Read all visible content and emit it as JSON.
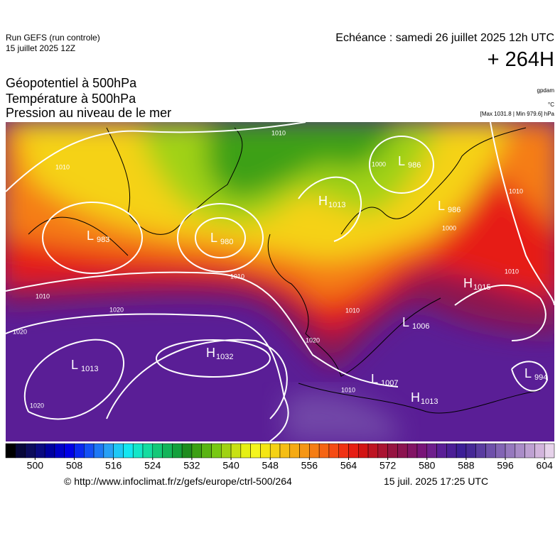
{
  "header": {
    "run": "Run GEFS (run controle)",
    "run_date": "15 juillet 2025 12Z",
    "valid": "Echéance : samedi 26 juillet 2025 12h UTC",
    "lead": "+ 264H",
    "fields": [
      "Géopotentiel à 500hPa",
      "Température à 500hPa",
      "Pression au niveau de le mer"
    ],
    "units": [
      "gpdam",
      "°C"
    ],
    "range_note": "[Max 1031.8 | Min 979.6] hPa"
  },
  "centers": [
    {
      "letter": "L",
      "value": 983
    },
    {
      "letter": "L",
      "value": 980
    },
    {
      "letter": "H",
      "value": 1013
    },
    {
      "letter": "L",
      "value": 986
    },
    {
      "letter": "L",
      "value": 986
    },
    {
      "letter": "H",
      "value": 1015
    },
    {
      "letter": "L",
      "value": 1006
    },
    {
      "letter": "H",
      "value": 1032
    },
    {
      "letter": "L",
      "value": 1013
    },
    {
      "letter": "L",
      "value": 1007
    },
    {
      "letter": "H",
      "value": 1013
    },
    {
      "letter": "L",
      "value": 994
    }
  ],
  "isobar_labels": [
    1010,
    1010,
    1000,
    1010,
    1010,
    1010,
    1020,
    1020,
    1020,
    1010,
    1020,
    1010,
    1010,
    1000
  ],
  "colorbar": {
    "range": [
      494,
      606
    ],
    "ticks": [
      500,
      508,
      516,
      524,
      532,
      540,
      548,
      556,
      564,
      572,
      580,
      588,
      596,
      604
    ],
    "colors": [
      "#000000",
      "#08083a",
      "#0c0c5c",
      "#0a0a80",
      "#0000a0",
      "#0000c8",
      "#0000e6",
      "#0a28f0",
      "#1450f5",
      "#1e78f5",
      "#28a0f5",
      "#1ec8f5",
      "#14e6f0",
      "#14e6c8",
      "#14dca0",
      "#14c878",
      "#14b45a",
      "#14a03c",
      "#1e8c1e",
      "#3ca014",
      "#5ab414",
      "#78c814",
      "#a0d214",
      "#c8e114",
      "#e6f014",
      "#f5f51e",
      "#f5e614",
      "#f5d214",
      "#f5be14",
      "#f5aa14",
      "#f59614",
      "#f57d14",
      "#f56414",
      "#f54b14",
      "#f03214",
      "#e61e14",
      "#d21414",
      "#be1423",
      "#aa1432",
      "#961441",
      "#8c1450",
      "#821464",
      "#781478",
      "#6e1e8c",
      "#5a1e96",
      "#4b1e96",
      "#3c1e96",
      "#462896",
      "#5a3ca0",
      "#6e50aa",
      "#8264b4",
      "#9678be",
      "#aa8cc8",
      "#bea0d2",
      "#d2b4dc",
      "#e6d2ea"
    ]
  },
  "footer": {
    "source": "© http://www.infoclimat.fr/z/gefs/europe/ctrl-500/264",
    "issued": "15 juil. 2025 17:25 UTC"
  }
}
